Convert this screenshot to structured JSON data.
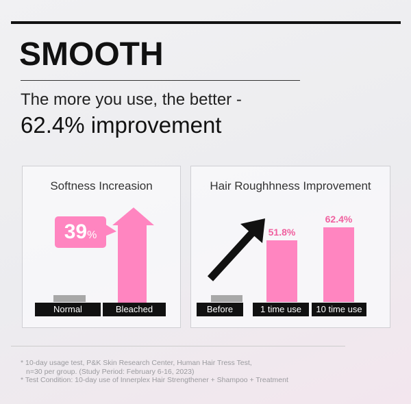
{
  "header": {
    "title": "SMOOTH",
    "subtitle": "The more you use, the better -",
    "highlight": "62.4% improvement"
  },
  "colors": {
    "accent": "#ff85c0",
    "accent_text": "#f0609f",
    "baseline_bar": "#a8a8a8"
  },
  "chart_data": [
    {
      "type": "bar",
      "title": "Softness Increasion",
      "categories": [
        "Normal",
        "Bleached"
      ],
      "annotation": "39",
      "annotation_unit": "%",
      "icons": [
        "up-arrow-icon"
      ]
    },
    {
      "type": "bar",
      "title": "Hair Roughhness Improvement",
      "categories": [
        "Before",
        "1 time use",
        "10 time use"
      ],
      "values": [
        null,
        51.8,
        62.4
      ],
      "data_labels": [
        "",
        "51.8%",
        "62.4%"
      ],
      "icons": [
        "trend-arrow-icon"
      ]
    }
  ],
  "footnotes": [
    "* 10-day usage test, P&K Skin Research Center, Human Hair Tress Test,",
    "n=30 per group. (Study Period: February 6-16, 2023)",
    "* Test Condition: 10-day use of Innerplex Hair Strengthener + Shampoo + Treatment"
  ]
}
